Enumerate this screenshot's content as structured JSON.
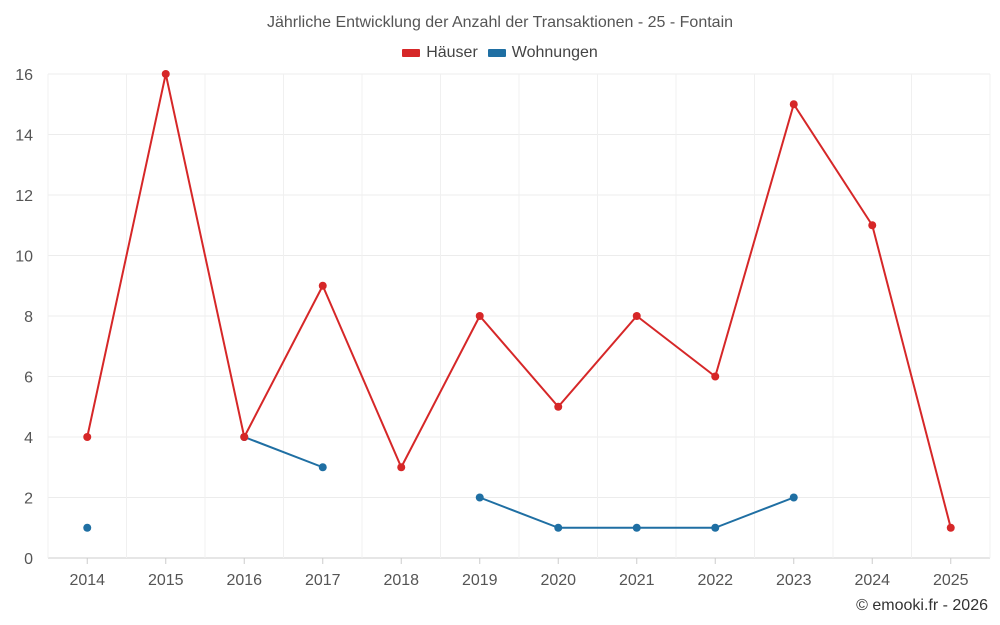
{
  "chart_data": {
    "type": "line",
    "title": "Jährliche Entwicklung der Anzahl der Transaktionen - 25 - Fontain",
    "categories": [
      "2014",
      "2015",
      "2016",
      "2017",
      "2018",
      "2019",
      "2020",
      "2021",
      "2022",
      "2023",
      "2024",
      "2025"
    ],
    "ylim": [
      0,
      16
    ],
    "yticks": [
      0,
      2,
      4,
      6,
      8,
      10,
      12,
      14,
      16
    ],
    "xlabel": "",
    "ylabel": "",
    "grid": true,
    "legend_position": "top-center",
    "series": [
      {
        "name": "Häuser",
        "color": "#d62728",
        "values": [
          4,
          16,
          4,
          9,
          3,
          8,
          5,
          8,
          6,
          15,
          11,
          1
        ]
      },
      {
        "name": "Wohnungen",
        "color": "#1f6fa3",
        "values": [
          1,
          null,
          4,
          3,
          null,
          2,
          1,
          1,
          1,
          2,
          null,
          null
        ]
      }
    ]
  },
  "copyright": "© emooki.fr - 2026"
}
